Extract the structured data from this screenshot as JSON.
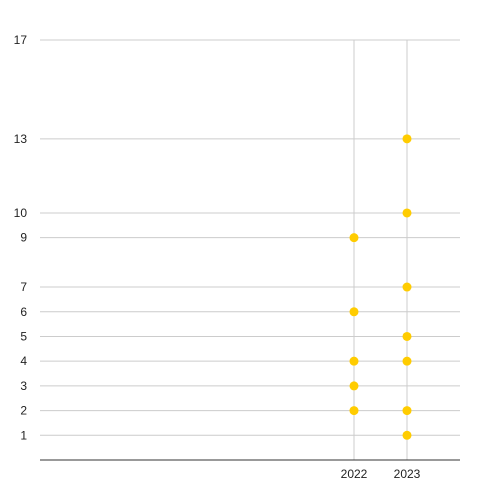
{
  "chart_data": {
    "type": "scatter",
    "title": "",
    "xlabel": "",
    "ylabel": "",
    "x_ticks": [
      "2022",
      "2023"
    ],
    "y_ticks": [
      1,
      2,
      3,
      4,
      5,
      6,
      7,
      9,
      10,
      13,
      17
    ],
    "ylim": [
      0,
      17
    ],
    "grid": true,
    "legend": "none",
    "series": [
      {
        "color": "#ffcc00",
        "points": [
          {
            "x": "2022",
            "y": 2
          },
          {
            "x": "2022",
            "y": 3
          },
          {
            "x": "2022",
            "y": 4
          },
          {
            "x": "2022",
            "y": 6
          },
          {
            "x": "2022",
            "y": 9
          },
          {
            "x": "2023",
            "y": 1
          },
          {
            "x": "2023",
            "y": 2
          },
          {
            "x": "2023",
            "y": 4
          },
          {
            "x": "2023",
            "y": 5
          },
          {
            "x": "2023",
            "y": 7
          },
          {
            "x": "2023",
            "y": 10
          },
          {
            "x": "2023",
            "y": 13
          }
        ]
      }
    ]
  }
}
